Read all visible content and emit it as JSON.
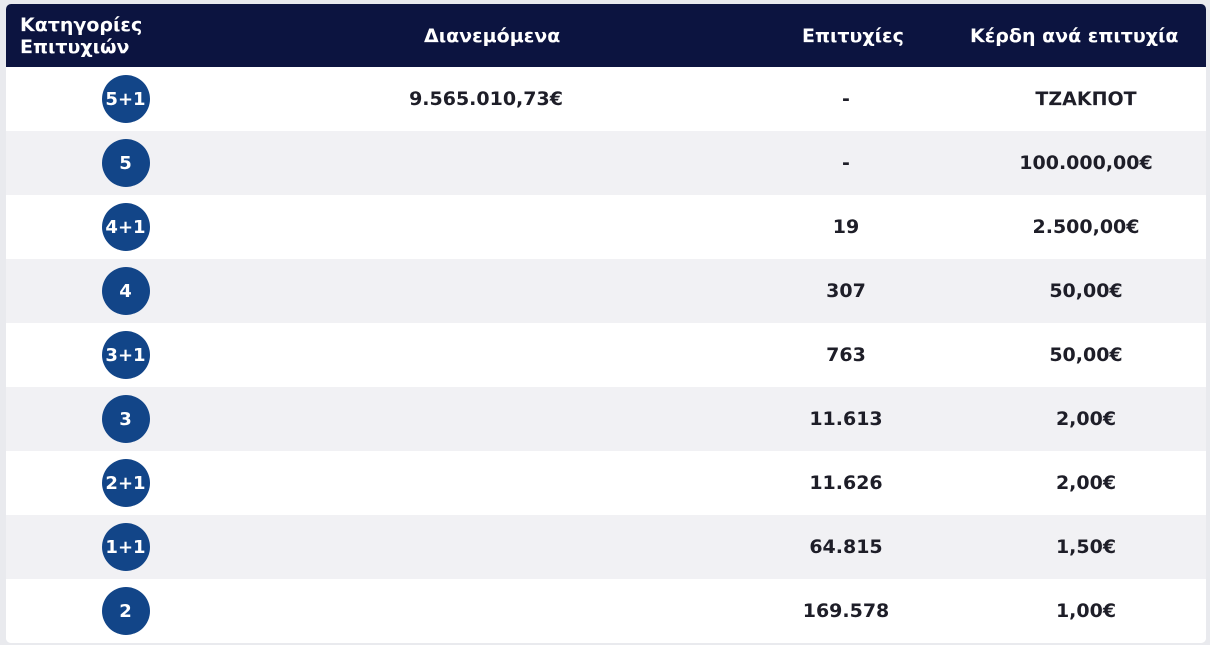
{
  "table": {
    "headers": {
      "category": "Κατηγορίες Επιτυχιών",
      "distributed": "Διανεμόμενα",
      "winners": "Επιτυχίες",
      "prize": "Κέρδη ανά επιτυχία"
    },
    "rows": [
      {
        "category": "5+1",
        "distributed": "9.565.010,73€",
        "winners": "-",
        "prize": "ΤΖΑΚΠΟΤ"
      },
      {
        "category": "5",
        "distributed": "",
        "winners": "-",
        "prize": "100.000,00€"
      },
      {
        "category": "4+1",
        "distributed": "",
        "winners": "19",
        "prize": "2.500,00€"
      },
      {
        "category": "4",
        "distributed": "",
        "winners": "307",
        "prize": "50,00€"
      },
      {
        "category": "3+1",
        "distributed": "",
        "winners": "763",
        "prize": "50,00€"
      },
      {
        "category": "3",
        "distributed": "",
        "winners": "11.613",
        "prize": "2,00€"
      },
      {
        "category": "2+1",
        "distributed": "",
        "winners": "11.626",
        "prize": "2,00€"
      },
      {
        "category": "1+1",
        "distributed": "",
        "winners": "64.815",
        "prize": "1,50€"
      },
      {
        "category": "2",
        "distributed": "",
        "winners": "169.578",
        "prize": "1,00€"
      }
    ]
  },
  "colors": {
    "header_bg": "#0c1440",
    "badge_bg": "#124588",
    "row_alt_bg": "#f1f1f4"
  }
}
